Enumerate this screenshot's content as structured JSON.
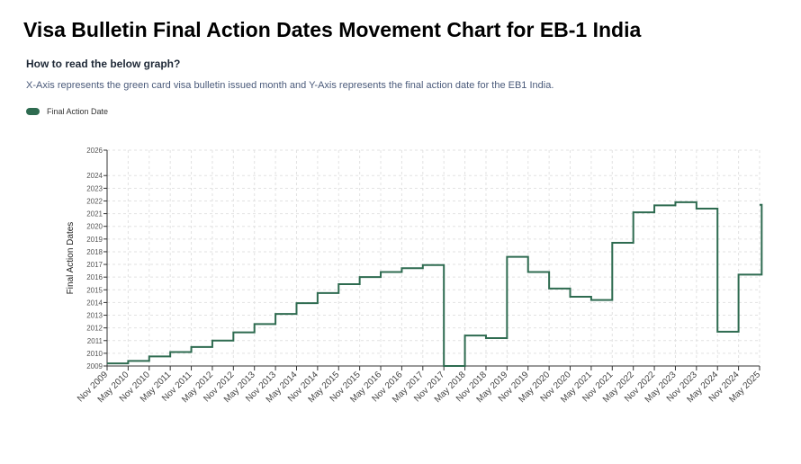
{
  "page": {
    "title": "Visa Bulletin Final Action Dates Movement Chart for EB-1 India",
    "subtitle": "How to read the below graph?",
    "description": "X-Axis represents the green card visa bulletin issued month and Y-Axis represents the final action date for the EB1 India."
  },
  "colors": {
    "line": "#2e6b50",
    "grid": "#e2e2e2",
    "axis": "#333333"
  },
  "chart_data": {
    "type": "line",
    "step": true,
    "legend": "Final Action Date",
    "legend_position": "top-left",
    "ylabel": "Final Action Dates",
    "xlabel": "",
    "ylim": [
      2009,
      2026
    ],
    "yticks": [
      2009,
      2010,
      2011,
      2012,
      2013,
      2014,
      2015,
      2016,
      2017,
      2018,
      2019,
      2020,
      2021,
      2022,
      2023,
      2024,
      2026
    ],
    "categories": [
      "Nov 2009",
      "May 2010",
      "Nov 2010",
      "May 2011",
      "Nov 2011",
      "May 2012",
      "Nov 2012",
      "May 2013",
      "Nov 2013",
      "May 2014",
      "Nov 2014",
      "May 2015",
      "Nov 2015",
      "May 2016",
      "Nov 2016",
      "May 2017",
      "Nov 2017",
      "May 2018",
      "Nov 2018",
      "May 2019",
      "Nov 2019",
      "May 2020",
      "Nov 2020",
      "May 2021",
      "Nov 2021",
      "May 2022",
      "Nov 2022",
      "May 2023",
      "Nov 2023",
      "May 2024",
      "Nov 2024",
      "May 2025"
    ],
    "series": [
      {
        "name": "Final Action Date",
        "x": [
          0,
          1,
          2,
          3,
          4,
          5,
          6,
          7,
          8,
          9,
          10,
          11,
          12,
          13,
          14,
          15,
          16,
          17,
          18,
          19,
          20,
          21,
          22,
          23,
          24,
          25,
          26,
          27,
          28,
          29,
          30,
          31.1
        ],
        "values": [
          2009.2,
          2009.4,
          2009.75,
          2010.1,
          2010.5,
          2011.0,
          2011.65,
          2012.3,
          2013.1,
          2013.95,
          2014.75,
          2015.45,
          2016.0,
          2016.4,
          2016.7,
          2016.95,
          2009.0,
          2011.4,
          2011.2,
          2017.6,
          2016.4,
          2015.1,
          2014.45,
          2014.2,
          2018.7,
          2021.1,
          2021.65,
          2021.9,
          2021.4,
          2011.7,
          2016.2,
          2021.7
        ]
      }
    ]
  }
}
